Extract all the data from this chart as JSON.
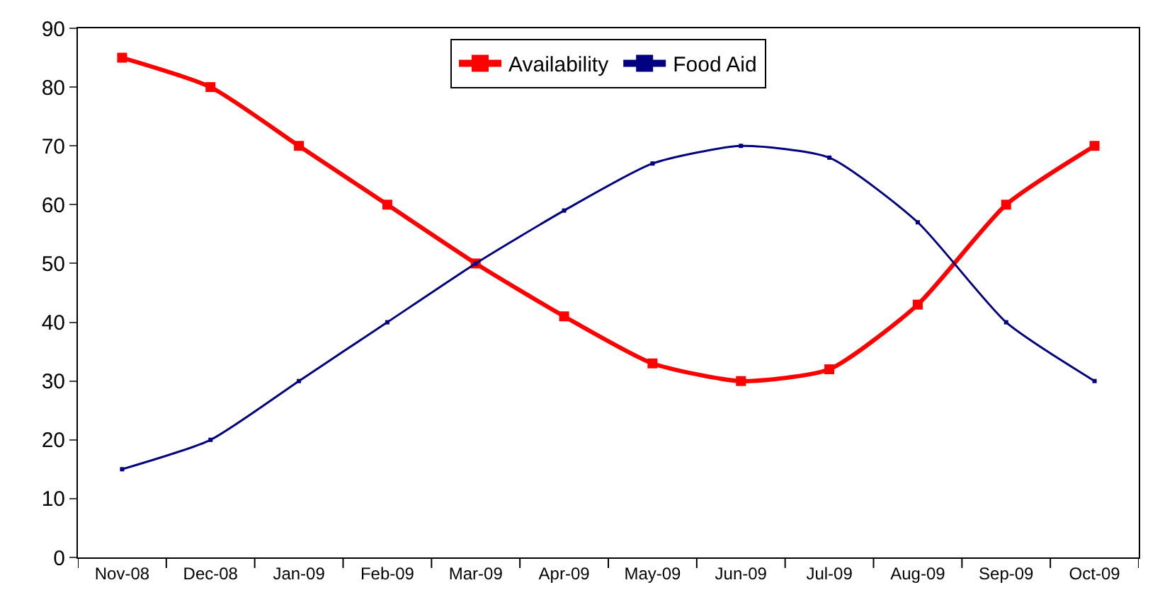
{
  "chart_data": {
    "type": "line",
    "categories": [
      "Nov-08",
      "Dec-08",
      "Jan-09",
      "Feb-09",
      "Mar-09",
      "Apr-09",
      "May-09",
      "Jun-09",
      "Jul-09",
      "Aug-09",
      "Sep-09",
      "Oct-09"
    ],
    "series": [
      {
        "name": "Availability",
        "color": "#ff0000",
        "values": [
          85,
          80,
          70,
          60,
          50,
          41,
          33,
          30,
          32,
          43,
          60,
          70
        ]
      },
      {
        "name": "Food Aid",
        "color": "#000080",
        "values": [
          15,
          20,
          30,
          40,
          50,
          59,
          67,
          70,
          68,
          57,
          40,
          30
        ]
      }
    ],
    "ylim": [
      0,
      90
    ],
    "yticks": [
      0,
      10,
      20,
      30,
      40,
      50,
      60,
      70,
      80,
      90
    ],
    "grid": false,
    "legend": "top",
    "marker": "square"
  }
}
